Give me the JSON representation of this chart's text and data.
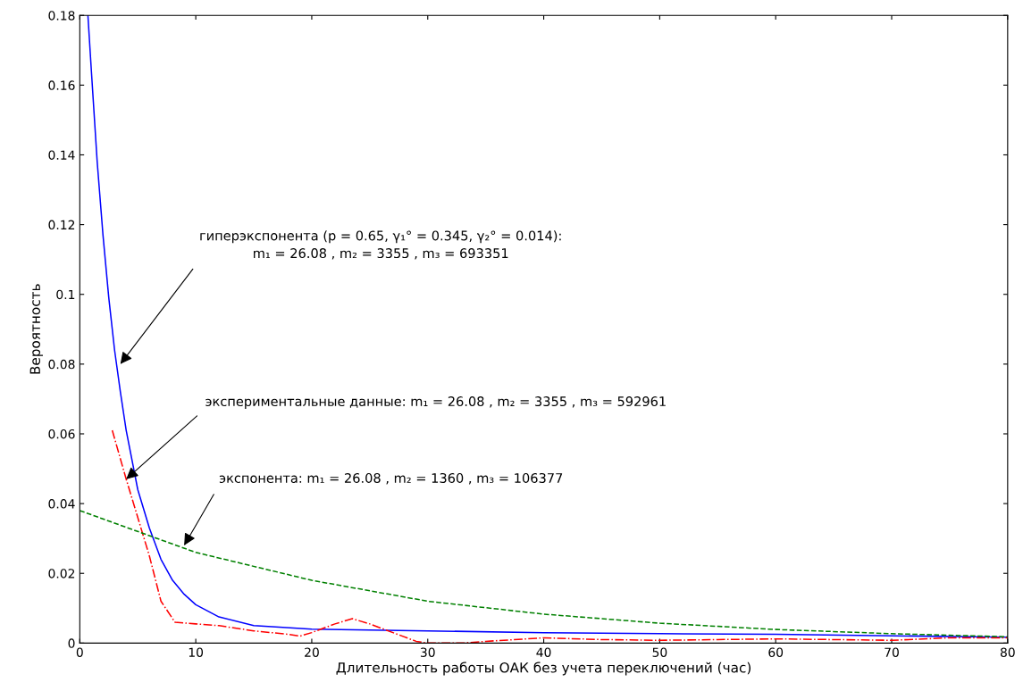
{
  "chart_data": {
    "type": "line",
    "xlabel": "Длительность работы ОАК без учета переключений (час)",
    "ylabel": "Вероятность",
    "xlim": [
      0,
      80
    ],
    "xticks": [
      0,
      10,
      20,
      30,
      40,
      50,
      60,
      70,
      80
    ],
    "ylim": [
      0,
      0.18
    ],
    "yticks": [
      0,
      0.02,
      0.04,
      0.06,
      0.08,
      0.1,
      0.12,
      0.14,
      0.16,
      0.18
    ],
    "grid": false,
    "legend": false,
    "series": [
      {
        "color": "#0000ff",
        "line_style": "solid",
        "x": [
          0.7,
          1,
          1.5,
          2,
          2.5,
          3,
          3.5,
          4,
          5,
          6,
          7,
          8,
          9,
          10,
          12,
          15,
          20,
          30,
          40,
          50,
          60,
          70,
          80
        ],
        "values": [
          0.18,
          0.164,
          0.138,
          0.117,
          0.099,
          0.084,
          0.072,
          0.061,
          0.044,
          0.033,
          0.024,
          0.018,
          0.014,
          0.011,
          0.0075,
          0.005,
          0.004,
          0.0035,
          0.003,
          0.0027,
          0.0025,
          0.0021,
          0.0017
        ]
      },
      {
        "color": "#ff0000",
        "line_style": "dashdot",
        "x": [
          2.8,
          4,
          6,
          7,
          8.2,
          10,
          12,
          15,
          18,
          19,
          20,
          22,
          23.5,
          25,
          27,
          29,
          30,
          33,
          35,
          40,
          45,
          50,
          55,
          60,
          65,
          70,
          75,
          80
        ],
        "values": [
          0.061,
          0.047,
          0.025,
          0.012,
          0.006,
          0.0055,
          0.005,
          0.0035,
          0.0025,
          0.002,
          0.003,
          0.0055,
          0.007,
          0.0055,
          0.003,
          0.0005,
          0,
          0,
          0.0005,
          0.0015,
          0.001,
          0.0008,
          0.001,
          0.0012,
          0.001,
          0.0008,
          0.0015,
          0.0015
        ]
      },
      {
        "color": "#008000",
        "line_style": "dashed",
        "x": [
          0,
          10,
          20,
          30,
          40,
          50,
          60,
          70,
          80
        ],
        "values": [
          0.038,
          0.026,
          0.018,
          0.012,
          0.0083,
          0.0057,
          0.0039,
          0.0027,
          0.0018
        ]
      }
    ],
    "annotations": [
      {
        "text": "гиперэкспонента (p = 0.65, γ₁° = 0.345, γ₂° = 0.014):\nm₁ = 26.08 , m₂ = 3355 , m₃ = 693351",
        "x": 3.5,
        "y": 0.08
      },
      {
        "text": "экспериментальные данные: m₁ = 26.08 , m₂ = 3355 , m₃ = 592961",
        "x": 4,
        "y": 0.047
      },
      {
        "text": "экспонента: m₁ = 26.08 , m₂ = 1360 , m₃ = 106377",
        "x": 9,
        "y": 0.028
      }
    ]
  }
}
